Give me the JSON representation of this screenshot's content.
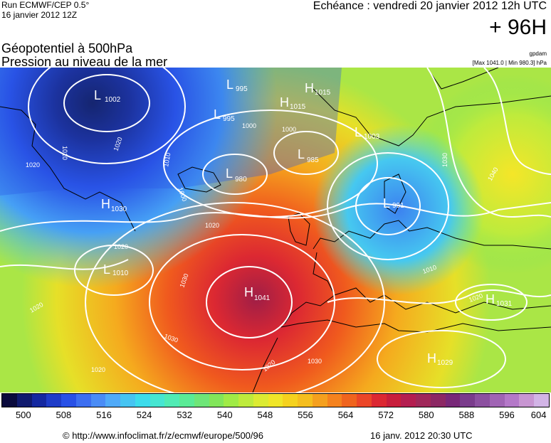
{
  "header": {
    "run": "Run ECMWF/CEP 0.5°",
    "run_date": "16 janvier 2012 12Z",
    "valid": "Echéance : vendredi 20 janvier 2012 12h UTC",
    "lead": "+ 96H",
    "title1": "Géopotentiel à 500hPa",
    "title2": "Pression au niveau de la mer",
    "gpdam": "gpdam",
    "minmax": "[Max 1041.0 | Min 980.3] hPa"
  },
  "map_labels": [
    {
      "letter": "L",
      "value": "1002"
    },
    {
      "letter": "L",
      "value": "995"
    },
    {
      "letter": "L",
      "value": "995"
    },
    {
      "letter": "H",
      "value": "1015"
    },
    {
      "letter": "H",
      "value": "1015"
    },
    {
      "letter": "L",
      "value": "1003"
    },
    {
      "letter": "L",
      "value": "985"
    },
    {
      "letter": "L",
      "value": "980"
    },
    {
      "letter": "H",
      "value": "1030"
    },
    {
      "letter": "L",
      "value": "991"
    },
    {
      "letter": "L",
      "value": "1010"
    },
    {
      "letter": "H",
      "value": "1041"
    },
    {
      "letter": "H",
      "value": "1031"
    },
    {
      "letter": "H",
      "value": "1029"
    }
  ],
  "isobar_labels": [
    "1010",
    "1020",
    "1010",
    "1000",
    "1000",
    "1020",
    "1020",
    "1020",
    "1030",
    "1020",
    "1030",
    "1020",
    "1020",
    "1030",
    "1030",
    "1040",
    "1010",
    "1020",
    "1000"
  ],
  "scale": {
    "ticks": [
      "500",
      "508",
      "516",
      "524",
      "532",
      "540",
      "548",
      "556",
      "564",
      "572",
      "580",
      "588",
      "596",
      "604"
    ],
    "colors": [
      "#0a0a3c",
      "#101a6e",
      "#1428a0",
      "#1e3cc8",
      "#2850e6",
      "#3c6ef0",
      "#4a8cf5",
      "#50aaf8",
      "#46c4f2",
      "#3cdcec",
      "#46e6d2",
      "#50ebb4",
      "#5aeb96",
      "#6ee678",
      "#82e65a",
      "#a0eb46",
      "#beeb3c",
      "#dceb32",
      "#f0e628",
      "#f5d21e",
      "#f5be1e",
      "#f5a01e",
      "#f5821e",
      "#f0641e",
      "#eb4628",
      "#dc2832",
      "#c81e3c",
      "#b41e50",
      "#a0285a",
      "#8c2864",
      "#782878",
      "#7a3c8c",
      "#8c50a0",
      "#a064b4",
      "#b478c8",
      "#c896d2",
      "#d2b4e6"
    ]
  },
  "footer": {
    "source": "© http://www.infoclimat.fr/z/ecmwf/europe/500/96",
    "date": "16 janv. 2012 20:30 UTC"
  },
  "colors": {
    "high": "#a01e3c",
    "low": "#0a0a3c",
    "isobar": "#ffffff"
  }
}
